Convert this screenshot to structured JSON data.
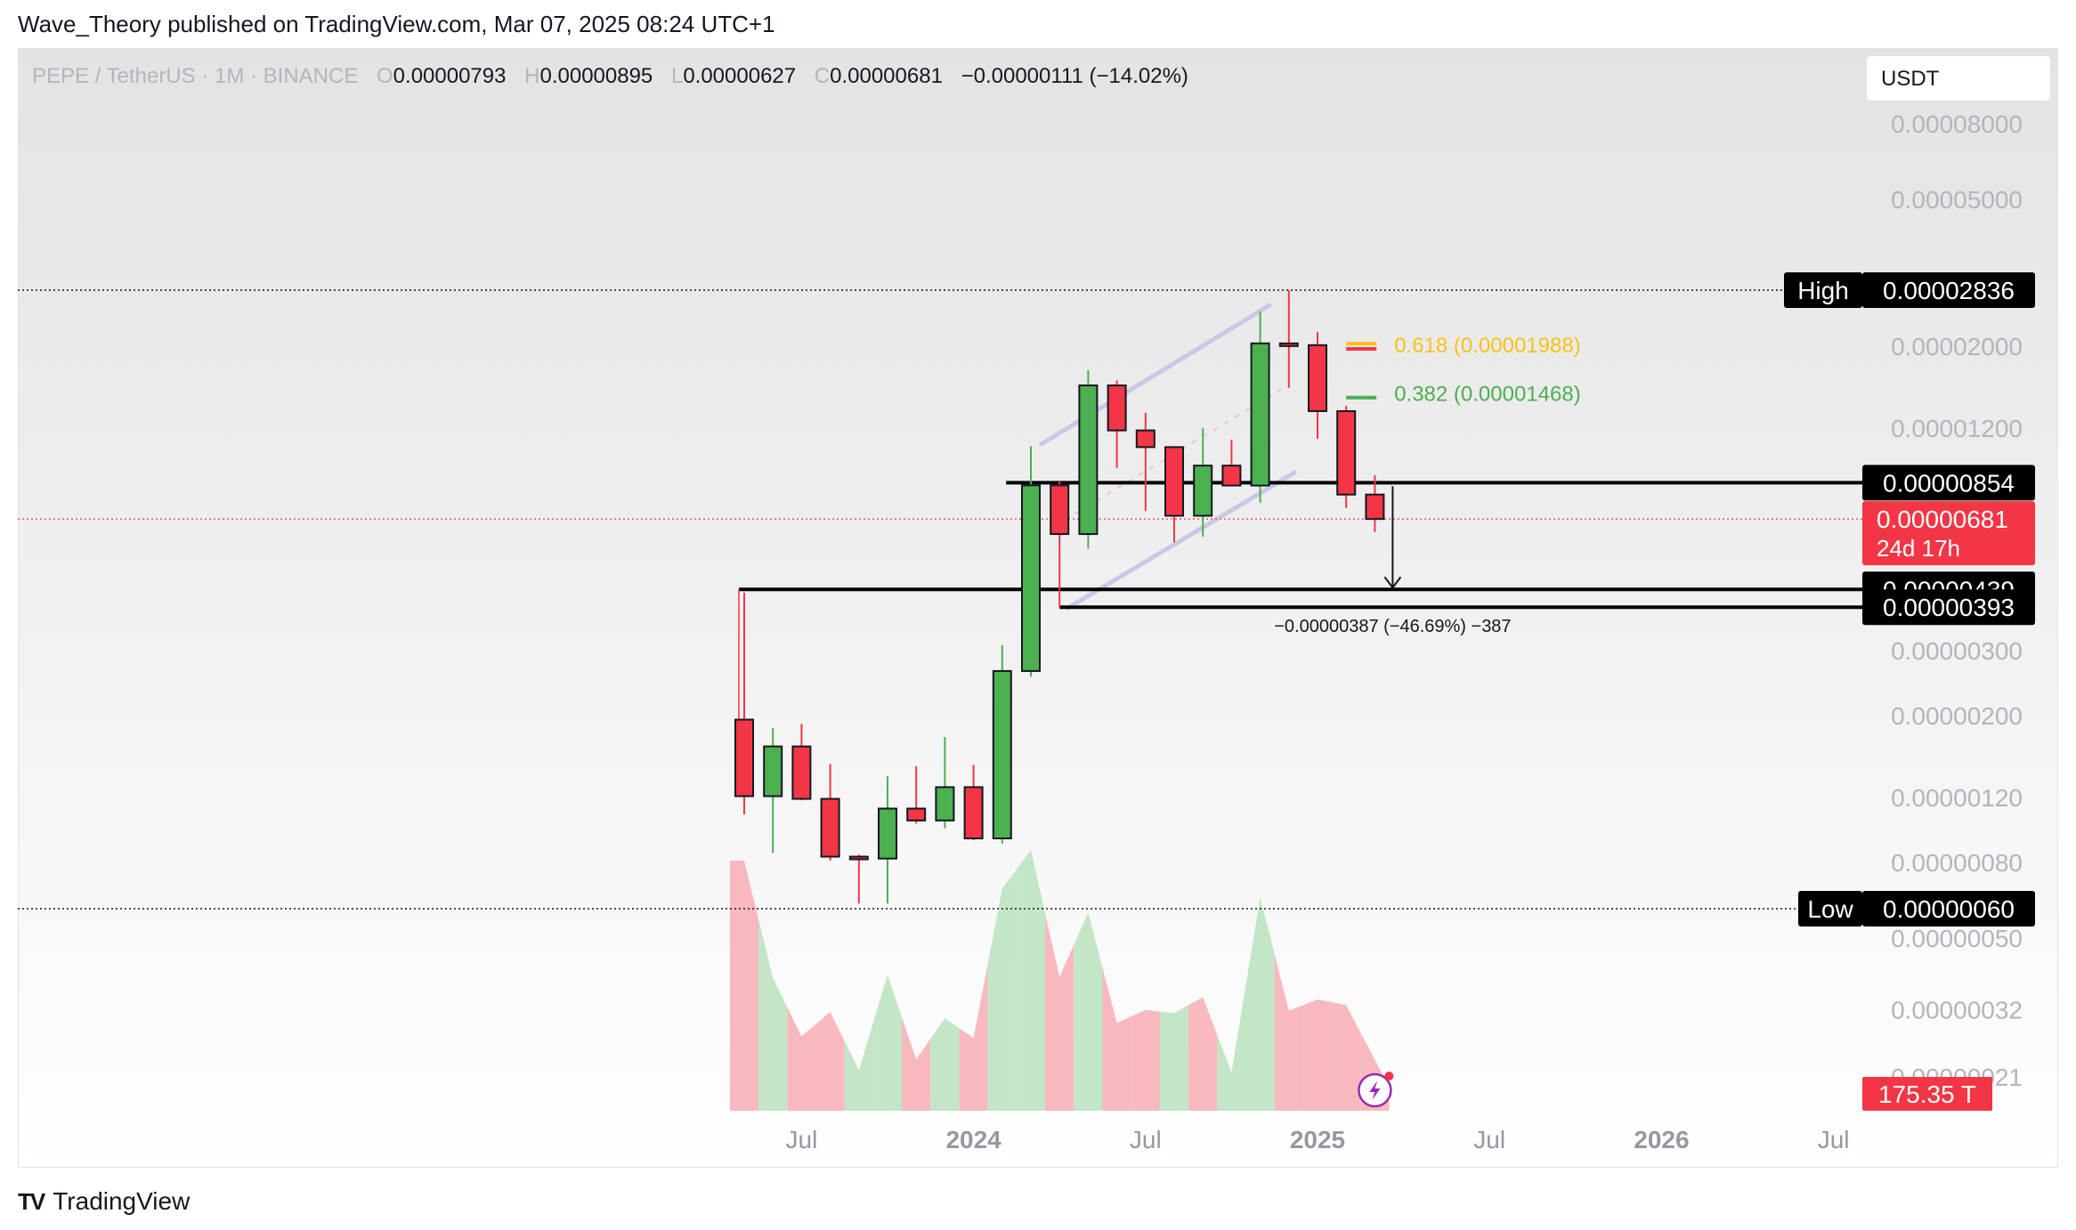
{
  "header": {
    "publisher": "Wave_Theory published on TradingView.com, Mar 07, 2025 08:24 UTC+1"
  },
  "symbol": {
    "name": "PEPE / TetherUS · 1M · BINANCE",
    "o_label": "O",
    "o": "0.00000793",
    "h_label": "H",
    "h": "0.00000895",
    "l_label": "L",
    "l": "0.00000627",
    "c_label": "C",
    "c": "0.00000681",
    "change": "−0.00000111 (−14.02%)"
  },
  "currency": "USDT",
  "footer": {
    "brand": "TradingView"
  },
  "colors": {
    "up": "#4caf50",
    "down": "#f23645",
    "fib618": "#f7c21a",
    "fib382": "#4caf50",
    "label_bg": "#000000"
  },
  "chart_data": {
    "type": "candlestick",
    "scale": "log",
    "x_axis_ticks": [
      "Jul",
      "2024",
      "Jul",
      "2025",
      "Jul",
      "2026",
      "Jul"
    ],
    "y_axis_ticks": [
      "0.00008000",
      "0.00005000",
      "0.00002000",
      "0.00001200",
      "0.00000300",
      "0.00000200",
      "0.00000120",
      "0.00000080",
      "0.00000050",
      "0.00000032",
      "0.00000021"
    ],
    "candles": [
      {
        "date": "2023-05",
        "o": 1.95e-06,
        "h": 4.3e-06,
        "l": 1.08e-06,
        "c": 1.21e-06
      },
      {
        "date": "2023-06",
        "o": 1.21e-06,
        "h": 1.85e-06,
        "l": 8.5e-07,
        "c": 1.65e-06
      },
      {
        "date": "2023-07",
        "o": 1.65e-06,
        "h": 1.9e-06,
        "l": 1.18e-06,
        "c": 1.19e-06
      },
      {
        "date": "2023-08",
        "o": 1.19e-06,
        "h": 1.48e-06,
        "l": 8.1e-07,
        "c": 8.3e-07
      },
      {
        "date": "2023-09",
        "o": 8.3e-07,
        "h": 8.4e-07,
        "l": 6.2e-07,
        "c": 8.2e-07
      },
      {
        "date": "2023-10",
        "o": 8.2e-07,
        "h": 1.37e-06,
        "l": 6.2e-07,
        "c": 1.12e-06
      },
      {
        "date": "2023-11",
        "o": 1.12e-06,
        "h": 1.46e-06,
        "l": 1.02e-06,
        "c": 1.04e-06
      },
      {
        "date": "2023-12",
        "o": 1.04e-06,
        "h": 1.75e-06,
        "l": 9.9e-07,
        "c": 1.28e-06
      },
      {
        "date": "2024-01",
        "o": 1.28e-06,
        "h": 1.47e-06,
        "l": 9.2e-07,
        "c": 9.3e-07
      },
      {
        "date": "2024-02",
        "o": 9.3e-07,
        "h": 3.1e-06,
        "l": 9e-07,
        "c": 2.64e-06
      },
      {
        "date": "2024-03",
        "o": 2.64e-06,
        "h": 1.072e-05,
        "l": 2.55e-06,
        "c": 8.4e-06
      },
      {
        "date": "2024-04",
        "o": 8.4e-06,
        "h": 8.6e-06,
        "l": 3.93e-06,
        "c": 6.2e-06
      },
      {
        "date": "2024-05",
        "o": 6.2e-06,
        "h": 1.724e-05,
        "l": 5.66e-06,
        "c": 1.566e-05
      },
      {
        "date": "2024-06",
        "o": 1.566e-05,
        "h": 1.616e-05,
        "l": 9.36e-06,
        "c": 1.183e-05
      },
      {
        "date": "2024-07",
        "o": 1.183e-05,
        "h": 1.321e-05,
        "l": 7.16e-06,
        "c": 1.066e-05
      },
      {
        "date": "2024-08",
        "o": 1.066e-05,
        "h": 1.07e-05,
        "l": 5.89e-06,
        "c": 6.95e-06
      },
      {
        "date": "2024-09",
        "o": 6.95e-06,
        "h": 1.202e-05,
        "l": 6.1e-06,
        "c": 9.5e-06
      },
      {
        "date": "2024-10",
        "o": 9.5e-06,
        "h": 1.117e-05,
        "l": 8.35e-06,
        "c": 8.39e-06
      },
      {
        "date": "2024-11",
        "o": 8.39e-06,
        "h": 2.483e-05,
        "l": 7.53e-06,
        "c": 2.035e-05
      },
      {
        "date": "2024-12",
        "o": 2.035e-05,
        "h": 2.836e-05,
        "l": 1.543e-05,
        "c": 2.013e-05
      },
      {
        "date": "2025-01",
        "o": 2.013e-05,
        "h": 2.185e-05,
        "l": 1.122e-05,
        "c": 1.334e-05
      },
      {
        "date": "2025-02",
        "o": 1.334e-05,
        "h": 1.379e-05,
        "l": 7.29e-06,
        "c": 7.93e-06
      },
      {
        "date": "2025-03",
        "o": 7.93e-06,
        "h": 8.95e-06,
        "l": 6.27e-06,
        "c": 6.81e-06
      }
    ],
    "volume_up": [
      false,
      true,
      false,
      false,
      true,
      true,
      false,
      true,
      false,
      true,
      true,
      false,
      true,
      false,
      false,
      true,
      false,
      true,
      true,
      false,
      false,
      false,
      false
    ],
    "levels": [
      {
        "label": "High",
        "value": "0.00002836"
      },
      {
        "label": "Low",
        "value": "0.00000060"
      },
      {
        "label": "",
        "value": "0.00000854"
      },
      {
        "label": "",
        "value": "0.00000439"
      },
      {
        "label": "",
        "value": "0.00000393"
      }
    ],
    "current_price": {
      "value": "0.00000681",
      "countdown": "24d 17h"
    },
    "volume_label": "175.35 T",
    "fib": [
      {
        "label": "0.618 (0.00001988)",
        "color": "#f7c21a"
      },
      {
        "label": "0.382 (0.00001468)",
        "color": "#4caf50"
      }
    ],
    "measure_label": "−0.00000387 (−46.69%) −387"
  }
}
